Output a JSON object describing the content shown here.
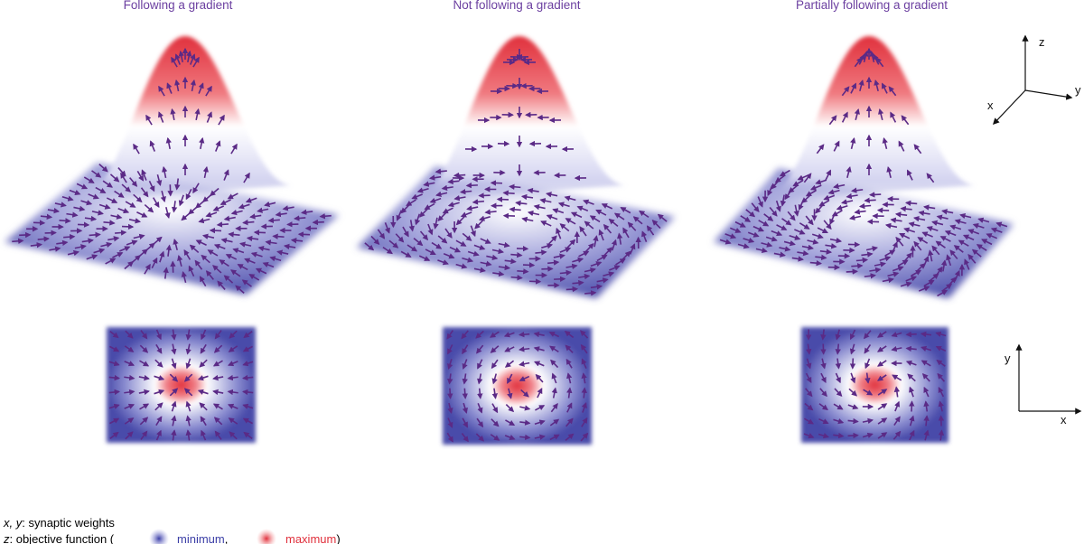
{
  "panels": [
    {
      "title": "Following a gradient"
    },
    {
      "title": "Not following a gradient"
    },
    {
      "title": "Partially following a gradient"
    }
  ],
  "axes_3d": {
    "x": "x",
    "y": "y",
    "z": "z"
  },
  "axes_2d": {
    "x": "x",
    "y": "y"
  },
  "legend": {
    "line1": {
      "vars": "x, y",
      "text": ": synaptic weights"
    },
    "line2": {
      "var": "z",
      "text": ": objective function (",
      "minimum": "minimum",
      "comma": ",",
      "maximum": "maximum",
      "close": ")"
    }
  }
}
